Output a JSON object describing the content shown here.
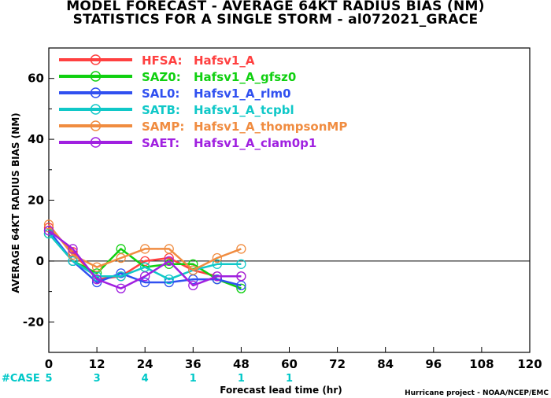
{
  "title_line1": "MODEL FORECAST - AVERAGE 64KT RADIUS BIAS (NM)",
  "title_line2": "STATISTICS FOR A SINGLE STORM - al072021_GRACE",
  "credit": "Hurricane project - NOAA/NCEP/EMC",
  "case_label": "#CASE",
  "case_color": "#00c8c8",
  "chart_data": {
    "type": "line",
    "xlabel": "Forecast lead time (hr)",
    "ylabel": "AVERAGE 64KT RADIUS BIAS (NM)",
    "xlim": [
      0,
      120
    ],
    "ylim": [
      -30,
      70
    ],
    "x_ticks": [
      0,
      12,
      24,
      36,
      48,
      60,
      72,
      84,
      96,
      108,
      120
    ],
    "y_ticks": [
      -20,
      0,
      20,
      40,
      60
    ],
    "grid": false,
    "legend_position": "top-left",
    "zero_line": true,
    "cases": [
      {
        "x": 0,
        "n": "5"
      },
      {
        "x": 12,
        "n": "3"
      },
      {
        "x": 24,
        "n": "4"
      },
      {
        "x": 36,
        "n": "1"
      },
      {
        "x": 48,
        "n": "1"
      },
      {
        "x": 60,
        "n": "1"
      }
    ],
    "series": [
      {
        "name": "HFSA:",
        "label": "Hafsv1_A",
        "color": "#ff4040",
        "x": [
          0,
          6,
          12,
          18,
          24,
          30,
          36,
          42,
          48
        ],
        "y": [
          11,
          3,
          -6,
          -5,
          0,
          1,
          -3,
          -5,
          -5
        ]
      },
      {
        "name": "SAZ0:",
        "label": "Hafsv1_A_gfsz0",
        "color": "#10d010",
        "x": [
          0,
          6,
          12,
          18,
          24,
          30,
          36,
          42,
          48
        ],
        "y": [
          9,
          0,
          -4,
          4,
          -2,
          -1,
          -1,
          -6,
          -9
        ]
      },
      {
        "name": "SAL0:",
        "label": "Hafsv1_A_rlm0",
        "color": "#3050f0",
        "x": [
          0,
          6,
          12,
          18,
          24,
          30,
          36,
          42,
          48
        ],
        "y": [
          10,
          0,
          -7,
          -4,
          -7,
          -7,
          -6,
          -6,
          -8
        ]
      },
      {
        "name": "SATB:",
        "label": "Hafsv1_A_tcpbl",
        "color": "#10c8c8",
        "x": [
          0,
          6,
          12,
          18,
          24,
          30,
          36,
          42,
          48
        ],
        "y": [
          9,
          0,
          -5,
          -5,
          -2,
          -6,
          -3,
          -1,
          -1
        ]
      },
      {
        "name": "SAMP:",
        "label": "Hafsv1_A_thompsonMP",
        "color": "#f08c40",
        "x": [
          0,
          6,
          12,
          18,
          24,
          30,
          36,
          42,
          48
        ],
        "y": [
          12,
          2,
          -2,
          1,
          4,
          4,
          -3,
          1,
          4
        ]
      },
      {
        "name": "SAET:",
        "label": "Hafsv1_A_clam0p1",
        "color": "#a020e0",
        "x": [
          0,
          6,
          12,
          18,
          24,
          30,
          36,
          42,
          48
        ],
        "y": [
          10,
          4,
          -6,
          -9,
          -5,
          0,
          -8,
          -5,
          -5
        ]
      }
    ]
  }
}
